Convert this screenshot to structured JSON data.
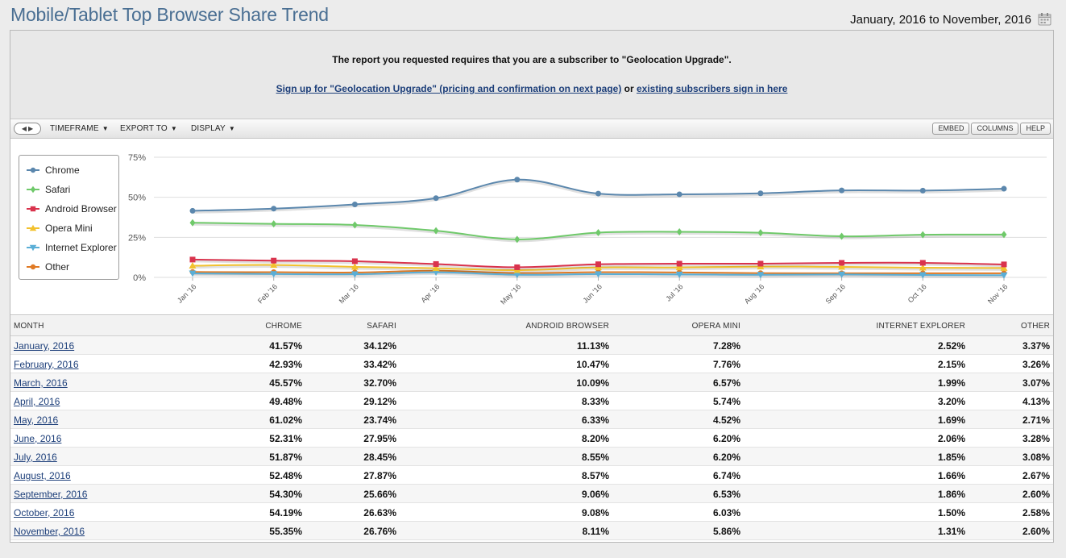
{
  "header": {
    "title": "Mobile/Tablet Top Browser Share Trend",
    "date_range": "January, 2016 to November, 2016"
  },
  "notice": {
    "message": "The report you requested requires that you are a subscriber to \"Geolocation Upgrade\".",
    "signup_link": "Sign up for \"Geolocation Upgrade\" (pricing and confirmation on next page)",
    "or_text": " or ",
    "signin_link": "existing subscribers sign in here"
  },
  "toolbar": {
    "timeframe": "TIMEFRAME",
    "export": "EXPORT TO",
    "display": "DISPLAY",
    "embed": "EMBED",
    "columns": "COLUMNS",
    "help": "HELP"
  },
  "chart_data": {
    "type": "line",
    "categories": [
      "Jan '16",
      "Feb '16",
      "Mar '16",
      "Apr '16",
      "May '16",
      "Jun '16",
      "Jul '16",
      "Aug '16",
      "Sep '16",
      "Oct '16",
      "Nov '16"
    ],
    "y_ticks": [
      "75%",
      "50%",
      "25%",
      "0%"
    ],
    "ylim": [
      0,
      75
    ],
    "grid": true,
    "legend_position": "left",
    "series": [
      {
        "name": "Chrome",
        "color": "#5b87ad",
        "marker": "circle",
        "values": [
          41.57,
          42.93,
          45.57,
          49.48,
          61.02,
          52.31,
          51.87,
          52.48,
          54.3,
          54.19,
          55.35
        ]
      },
      {
        "name": "Safari",
        "color": "#6fc96a",
        "marker": "diamond",
        "values": [
          34.12,
          33.42,
          32.7,
          29.12,
          23.74,
          27.95,
          28.45,
          27.87,
          25.66,
          26.63,
          26.76
        ]
      },
      {
        "name": "Android Browser",
        "color": "#d9334d",
        "marker": "square",
        "values": [
          11.13,
          10.47,
          10.09,
          8.33,
          6.33,
          8.2,
          8.55,
          8.57,
          9.06,
          9.08,
          8.11
        ]
      },
      {
        "name": "Opera Mini",
        "color": "#f2c12e",
        "marker": "triangle",
        "values": [
          7.28,
          7.76,
          6.57,
          5.74,
          4.52,
          6.2,
          6.2,
          6.74,
          6.53,
          6.03,
          5.86
        ]
      },
      {
        "name": "Internet Explorer",
        "color": "#5aaed6",
        "marker": "triangle-down",
        "values": [
          2.52,
          2.15,
          1.99,
          3.2,
          1.69,
          2.06,
          1.85,
          1.66,
          1.86,
          1.5,
          1.31
        ]
      },
      {
        "name": "Other",
        "color": "#e07a25",
        "marker": "circle",
        "values": [
          3.37,
          3.26,
          3.07,
          4.13,
          2.71,
          3.28,
          3.08,
          2.67,
          2.6,
          2.58,
          2.6
        ]
      }
    ]
  },
  "table": {
    "columns": [
      "MONTH",
      "CHROME",
      "SAFARI",
      "ANDROID BROWSER",
      "OPERA MINI",
      "INTERNET EXPLORER",
      "OTHER"
    ],
    "rows": [
      [
        "January, 2016",
        "41.57%",
        "34.12%",
        "11.13%",
        "7.28%",
        "2.52%",
        "3.37%"
      ],
      [
        "February, 2016",
        "42.93%",
        "33.42%",
        "10.47%",
        "7.76%",
        "2.15%",
        "3.26%"
      ],
      [
        "March, 2016",
        "45.57%",
        "32.70%",
        "10.09%",
        "6.57%",
        "1.99%",
        "3.07%"
      ],
      [
        "April, 2016",
        "49.48%",
        "29.12%",
        "8.33%",
        "5.74%",
        "3.20%",
        "4.13%"
      ],
      [
        "May, 2016",
        "61.02%",
        "23.74%",
        "6.33%",
        "4.52%",
        "1.69%",
        "2.71%"
      ],
      [
        "June, 2016",
        "52.31%",
        "27.95%",
        "8.20%",
        "6.20%",
        "2.06%",
        "3.28%"
      ],
      [
        "July, 2016",
        "51.87%",
        "28.45%",
        "8.55%",
        "6.20%",
        "1.85%",
        "3.08%"
      ],
      [
        "August, 2016",
        "52.48%",
        "27.87%",
        "8.57%",
        "6.74%",
        "1.66%",
        "2.67%"
      ],
      [
        "September, 2016",
        "54.30%",
        "25.66%",
        "9.06%",
        "6.53%",
        "1.86%",
        "2.60%"
      ],
      [
        "October, 2016",
        "54.19%",
        "26.63%",
        "9.08%",
        "6.03%",
        "1.50%",
        "2.58%"
      ],
      [
        "November, 2016",
        "55.35%",
        "26.76%",
        "8.11%",
        "5.86%",
        "1.31%",
        "2.60%"
      ]
    ]
  }
}
